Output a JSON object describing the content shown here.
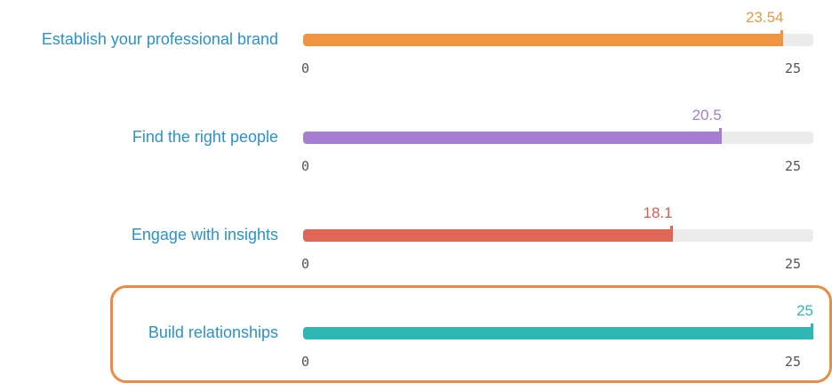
{
  "chart_data": {
    "type": "bar",
    "title": "",
    "xlabel": "",
    "ylabel": "",
    "xlim": [
      0,
      25
    ],
    "grid": false,
    "legend": "none",
    "categories": [
      "Establish your professional brand",
      "Find the right people",
      "Engage with insights",
      "Build relationships"
    ],
    "values": [
      23.54,
      20.5,
      18.1,
      25
    ],
    "value_labels": [
      "23.54",
      "20.5",
      "18.1",
      "25"
    ],
    "tick_min_labels": [
      "0",
      "0",
      "0",
      "0"
    ],
    "tick_max_labels": [
      "25",
      "25",
      "25",
      "25"
    ],
    "colors": [
      "#f0953f",
      "#a57ed1",
      "#e06658",
      "#2db8b5"
    ],
    "value_label_colors": [
      "#e59a43",
      "#a57ed1",
      "#d95b50",
      "#2db8b5"
    ],
    "highlighted_category": "Build relationships",
    "highlight_color": "#f08a3e",
    "track_color": "#ececec",
    "label_color": "#2a93c9"
  }
}
